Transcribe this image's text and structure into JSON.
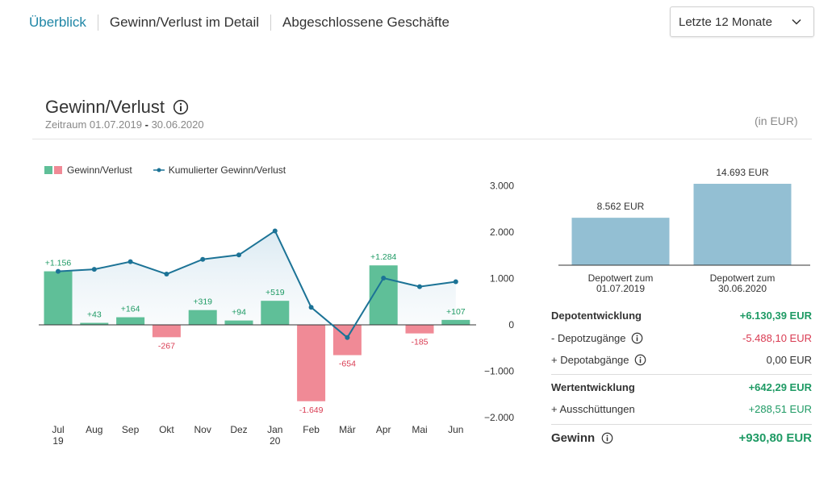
{
  "tabs": [
    {
      "label": "Überblick",
      "active": true
    },
    {
      "label": "Gewinn/Verlust im Detail",
      "active": false
    },
    {
      "label": "Abgeschlossene Geschäfte",
      "active": false
    }
  ],
  "period_select": {
    "value": "Letzte 12 Monate"
  },
  "panel": {
    "title": "Gewinn/Verlust",
    "period_prefix": "Zeitraum 01.07.2019",
    "period_dash": "-",
    "period_suffix": "30.06.2020",
    "unit": "(in EUR)"
  },
  "legend": {
    "bars": "Gewinn/Verlust",
    "line": "Kumulierter Gewinn/Verlust"
  },
  "colors": {
    "accent": "#1f86a6",
    "positive_bar": "#5fbf98",
    "negative_bar": "#f08a96",
    "line": "#1c7396",
    "depot_bar": "#93bfd3",
    "positive_text": "#1e9a64",
    "negative_text": "#d93b52"
  },
  "chart_data": [
    {
      "type": "bar",
      "categories": [
        "Jul 19",
        "Aug",
        "Sep",
        "Okt",
        "Nov",
        "Dez",
        "Jan 20",
        "Feb",
        "Mär",
        "Apr",
        "Mai",
        "Jun"
      ],
      "x_ticks": [
        [
          "Jul",
          "19"
        ],
        [
          "Aug"
        ],
        [
          "Sep"
        ],
        [
          "Okt"
        ],
        [
          "Nov"
        ],
        [
          "Dez"
        ],
        [
          "Jan",
          "20"
        ],
        [
          "Feb"
        ],
        [
          "Mär"
        ],
        [
          "Apr"
        ],
        [
          "Mai"
        ],
        [
          "Jun"
        ]
      ],
      "series": [
        {
          "name": "Gewinn/Verlust",
          "type": "bar",
          "values": [
            1156,
            43,
            164,
            -267,
            319,
            94,
            519,
            -1649,
            -654,
            1284,
            -185,
            107
          ],
          "labels": [
            "+1.156",
            "+43",
            "+164",
            "-267",
            "+319",
            "+94",
            "+519",
            "-1.649",
            "-654",
            "+1.284",
            "-185",
            "+107"
          ]
        },
        {
          "name": "Kumulierter Gewinn/Verlust",
          "type": "line",
          "values": [
            1156,
            1199,
            1363,
            1096,
            1415,
            1509,
            2028,
            379,
            -275,
            1009,
            824,
            931
          ]
        }
      ],
      "y_ticks": [
        3000,
        2000,
        1000,
        0,
        -1000,
        -2000
      ],
      "y_tick_labels": [
        "3.000",
        "2.000",
        "1.000",
        "0",
        "−1.000",
        "−2.000"
      ],
      "ylim": [
        -2000,
        3000
      ],
      "grid": false,
      "legend_position": "top-left"
    },
    {
      "type": "bar",
      "categories": [
        [
          "Depotwert zum",
          "01.07.2019"
        ],
        [
          "Depotwert zum",
          "30.06.2020"
        ]
      ],
      "values": [
        8562,
        14693
      ],
      "labels": [
        "8.562 EUR",
        "14.693 EUR"
      ],
      "grid": false
    }
  ],
  "summary": {
    "depotentwicklung": {
      "label": "Depotentwicklung",
      "value": "+6.130,39 EUR"
    },
    "depotzugaenge": {
      "label": "- Depotzugänge",
      "value": "-5.488,10 EUR"
    },
    "depotabgaenge": {
      "label": "+ Depotabgänge",
      "value": "0,00 EUR"
    },
    "wertentwicklung": {
      "label": "Wertentwicklung",
      "value": "+642,29 EUR"
    },
    "ausschuettungen": {
      "label": "+ Ausschüttungen",
      "value": "+288,51 EUR"
    },
    "gewinn": {
      "label": "Gewinn",
      "value": "+930,80 EUR"
    }
  }
}
